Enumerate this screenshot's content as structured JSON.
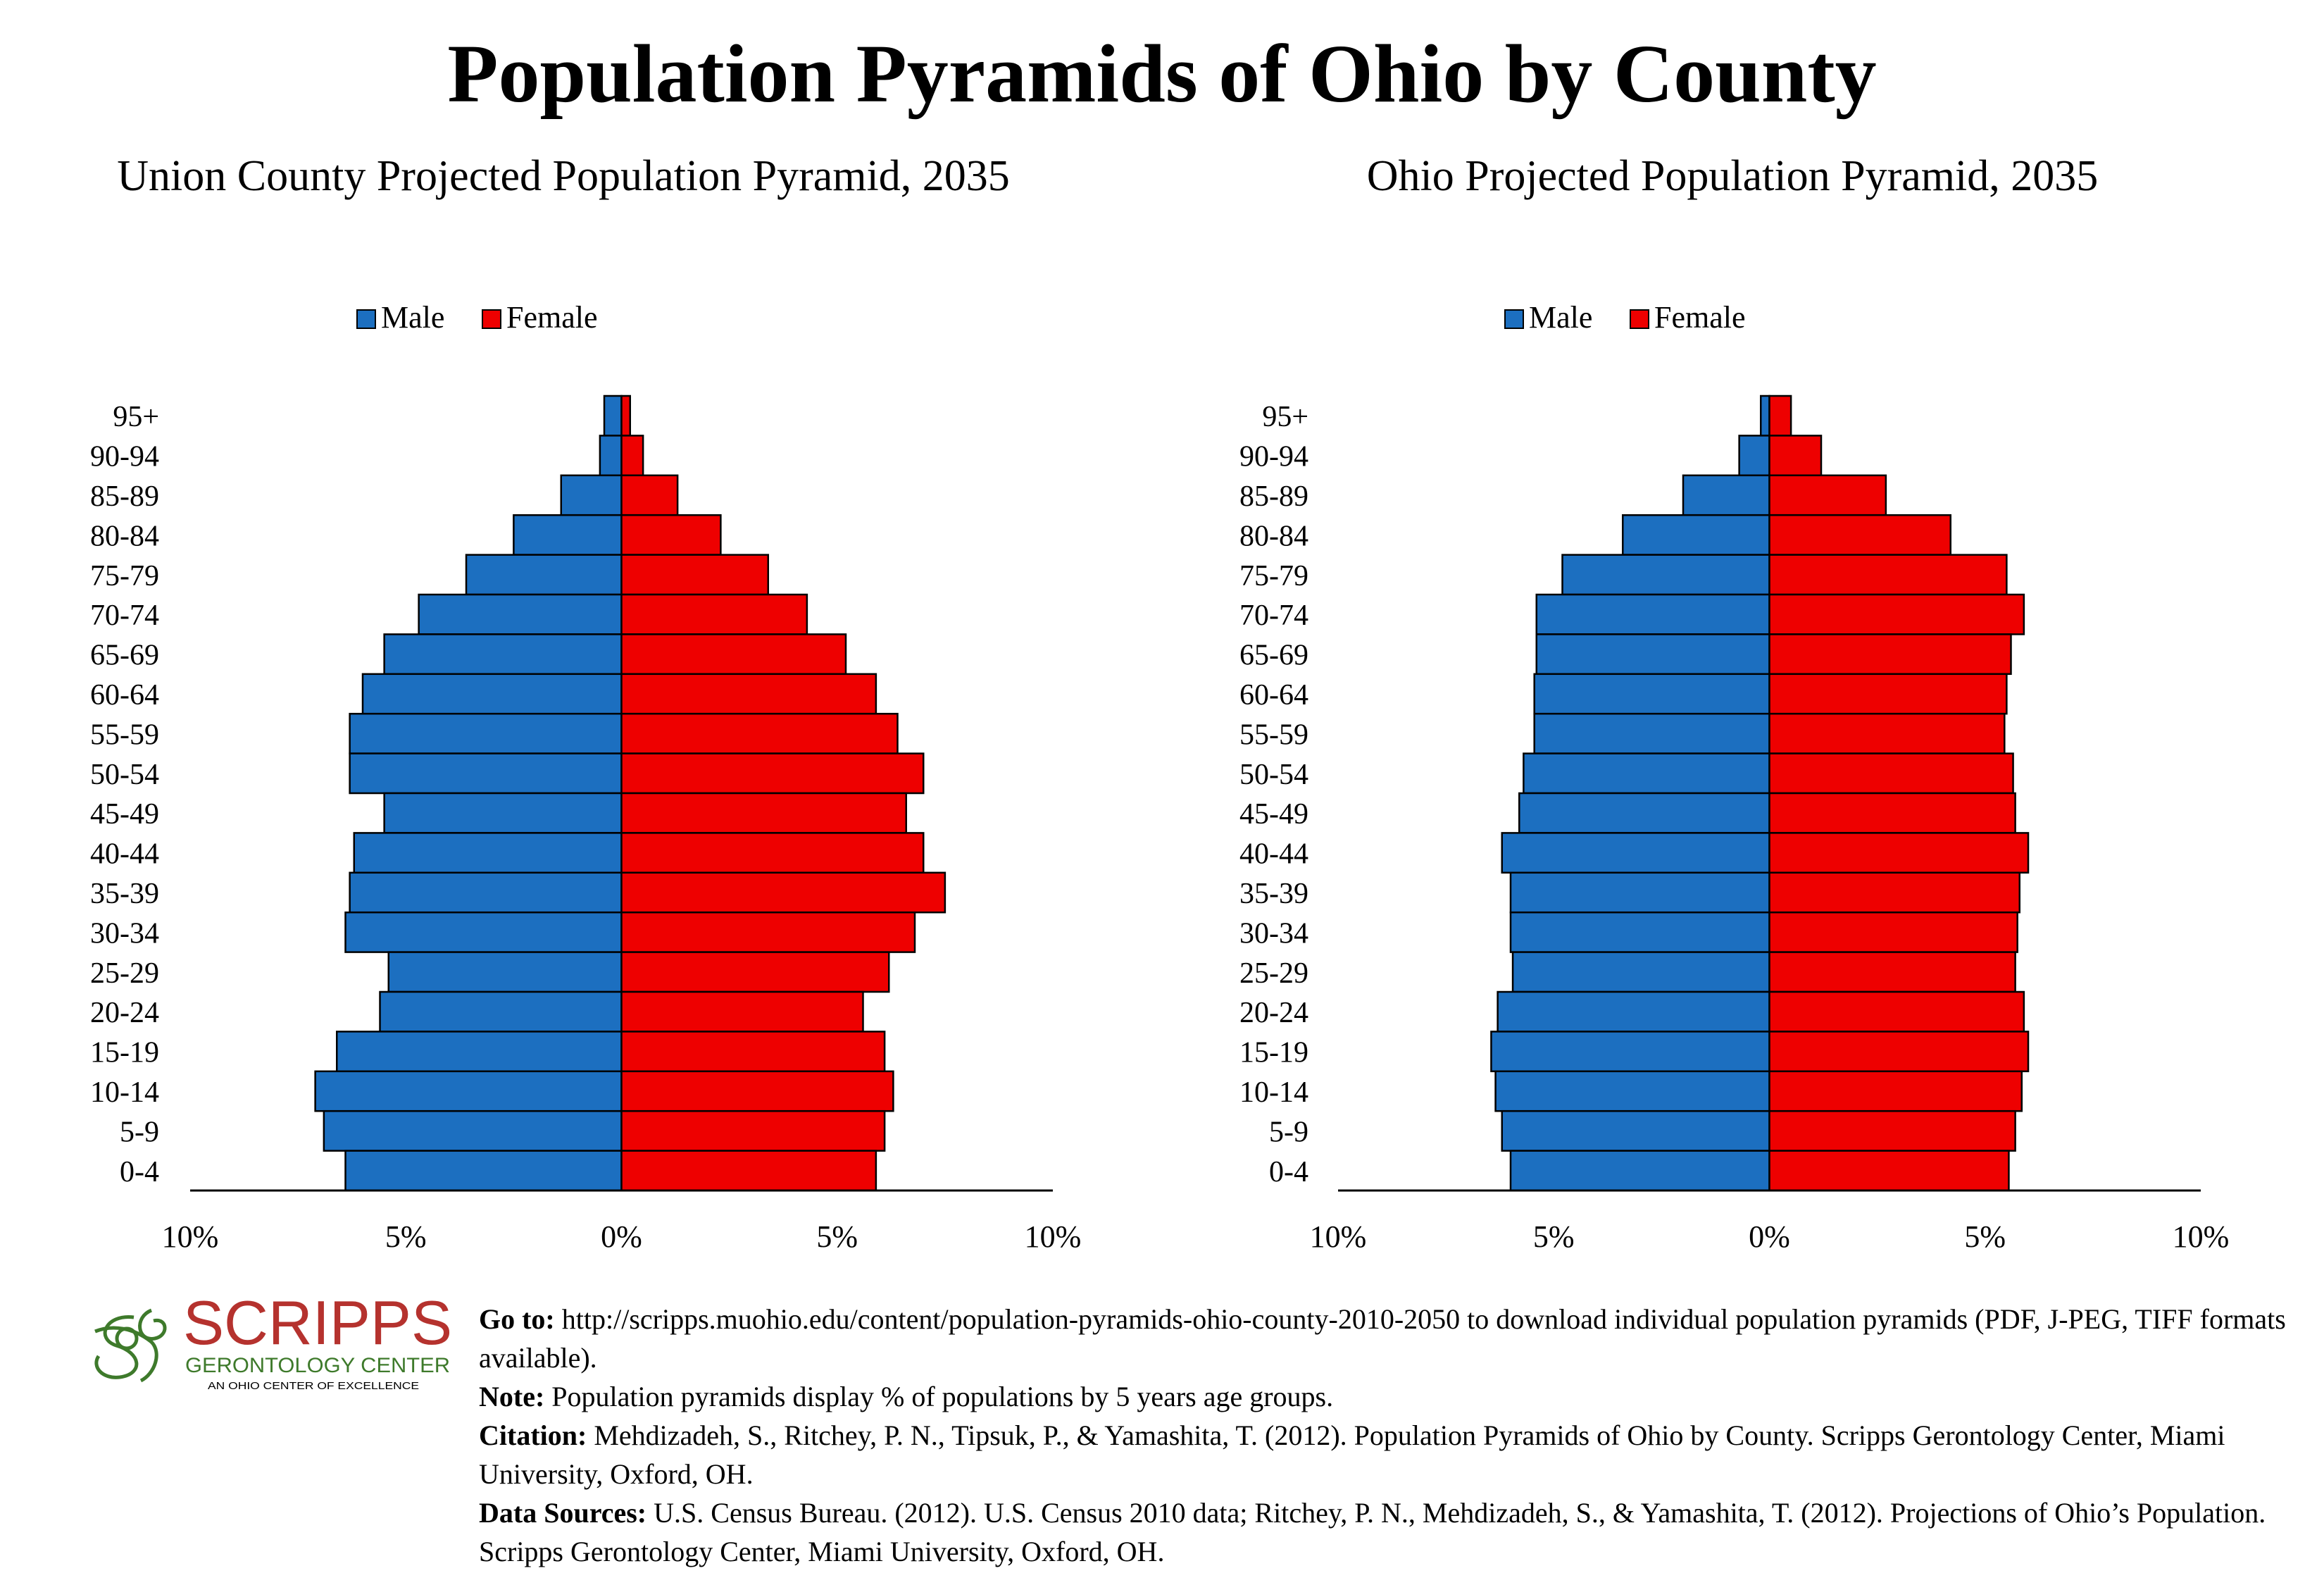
{
  "page": {
    "title": "Population Pyramids of Ohio by County"
  },
  "colors": {
    "male": "#1c6fc0",
    "female": "#ee0000",
    "logo_red": "#b5322e",
    "logo_green": "#3e7a2b"
  },
  "chart_data": [
    {
      "type": "bar",
      "orientation": "horizontal-pyramid",
      "title": "Union County Projected Population Pyramid, 2035",
      "legend": [
        "Male",
        "Female"
      ],
      "legend_position": "top-center",
      "categories": [
        "95+",
        "90-94",
        "85-89",
        "80-84",
        "75-79",
        "70-74",
        "65-69",
        "60-64",
        "55-59",
        "50-54",
        "45-49",
        "40-44",
        "35-39",
        "30-34",
        "25-29",
        "20-24",
        "15-19",
        "10-14",
        "5-9",
        "0-4"
      ],
      "series": [
        {
          "name": "Male",
          "values": [
            0.4,
            0.5,
            1.4,
            2.5,
            3.6,
            4.7,
            5.5,
            6.0,
            6.3,
            6.3,
            5.5,
            6.2,
            6.3,
            6.4,
            5.4,
            5.6,
            6.6,
            7.1,
            6.9,
            6.4
          ]
        },
        {
          "name": "Female",
          "values": [
            0.2,
            0.5,
            1.3,
            2.3,
            3.4,
            4.3,
            5.2,
            5.9,
            6.4,
            7.0,
            6.6,
            7.0,
            7.5,
            6.8,
            6.2,
            5.6,
            6.1,
            6.3,
            6.1,
            5.9
          ]
        }
      ],
      "xlim": [
        -10,
        10
      ],
      "x_ticks": [
        "10%",
        "5%",
        "0%",
        "5%",
        "10%"
      ],
      "grid": false
    },
    {
      "type": "bar",
      "orientation": "horizontal-pyramid",
      "title": "Ohio Projected Population Pyramid, 2035",
      "legend": [
        "Male",
        "Female"
      ],
      "legend_position": "top-center",
      "categories": [
        "95+",
        "90-94",
        "85-89",
        "80-84",
        "75-79",
        "70-74",
        "65-69",
        "60-64",
        "55-59",
        "50-54",
        "45-49",
        "40-44",
        "35-39",
        "30-34",
        "25-29",
        "20-24",
        "15-19",
        "10-14",
        "5-9",
        "0-4"
      ],
      "series": [
        {
          "name": "Male",
          "values": [
            0.2,
            0.7,
            2.0,
            3.4,
            4.8,
            5.4,
            5.4,
            5.45,
            5.45,
            5.7,
            5.8,
            6.2,
            6.0,
            6.0,
            5.95,
            6.3,
            6.45,
            6.35,
            6.2,
            6.0
          ]
        },
        {
          "name": "Female",
          "values": [
            0.5,
            1.2,
            2.7,
            4.2,
            5.5,
            5.9,
            5.6,
            5.5,
            5.45,
            5.65,
            5.7,
            6.0,
            5.8,
            5.75,
            5.7,
            5.9,
            6.0,
            5.85,
            5.7,
            5.55
          ]
        }
      ],
      "xlim": [
        -10,
        10
      ],
      "x_ticks": [
        "10%",
        "5%",
        "0%",
        "5%",
        "10%"
      ],
      "grid": false
    }
  ],
  "footer": {
    "logo": {
      "name": "SCRIPPS",
      "subtitle": "GERONTOLOGY CENTER",
      "tagline": "AN OHIO CENTER OF EXCELLENCE"
    },
    "goto_label": "Go to:",
    "goto_text": "http://scripps.muohio.edu/content/population-pyramids-ohio-county-2010-2050 to download individual population pyramids (PDF, J-PEG, TIFF formats available).",
    "note_label": "Note:",
    "note_text": "Population pyramids display % of populations by 5 years age groups.",
    "citation_label": "Citation:",
    "citation_text": "Mehdizadeh, S., Ritchey, P. N., Tipsuk, P., & Yamashita, T. (2012). Population Pyramids of Ohio by County. Scripps Gerontology Center, Miami University, Oxford, OH.",
    "sources_label": "Data Sources:",
    "sources_text": "U.S. Census Bureau. (2012). U.S. Census 2010 data; Ritchey, P. N., Mehdizadeh, S., & Yamashita, T. (2012). Projections of Ohio’s Population. Scripps Gerontology Center, Miami University, Oxford, OH."
  }
}
